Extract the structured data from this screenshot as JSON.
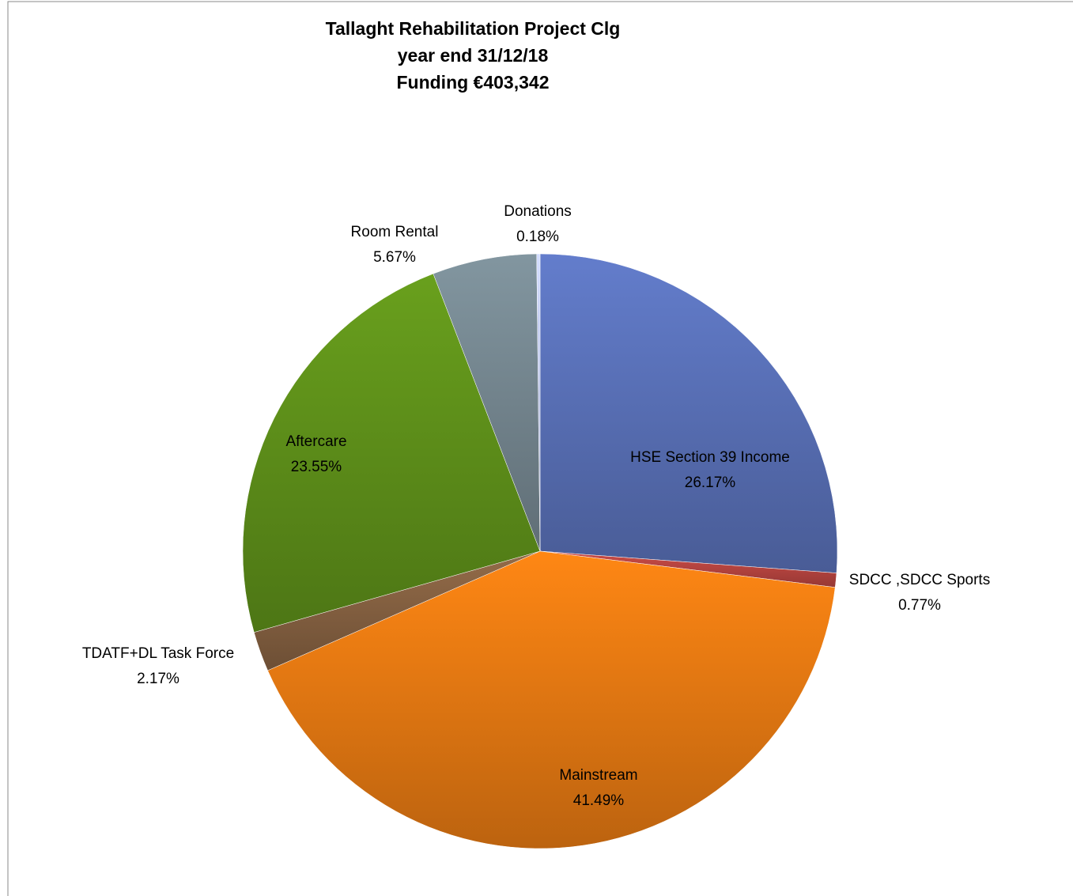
{
  "chart_data": {
    "type": "pie",
    "title": [
      "Tallaght Rehabilitation Project Clg",
      "year end 31/12/18",
      "Funding    €403,342"
    ],
    "categories": [
      "HSE Section 39 Income",
      "SDCC ,SDCC Sports",
      "Mainstream",
      "TDATF+DL Task Force",
      "Aftercare",
      "Room Rental",
      "Donations"
    ],
    "values": [
      26.17,
      0.77,
      41.49,
      2.17,
      23.55,
      5.67,
      0.18
    ],
    "value_labels": [
      "26.17%",
      "0.77%",
      "41.49%",
      "2.17%",
      "23.55%",
      "5.67%",
      "0.18%"
    ],
    "colors": [
      "#4f64a3",
      "#a33d39",
      "#cc6c10",
      "#76563a",
      "#548017",
      "#687880",
      "#a9b1dc"
    ]
  }
}
